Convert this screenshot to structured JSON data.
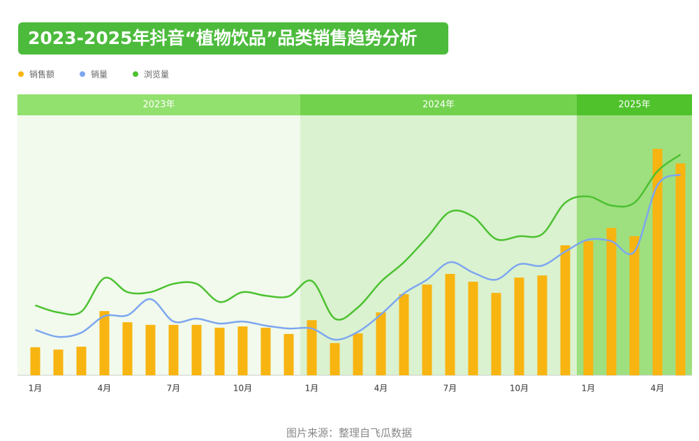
{
  "chart_data": {
    "type": "bar_line",
    "title": "2023-2025年抖音“植物饮品”品类销售趋势分析",
    "source": "图片来源：整理自飞瓜数据",
    "categories": [
      "1月",
      null,
      null,
      "4月",
      null,
      null,
      "7月",
      null,
      null,
      "10月",
      null,
      null,
      "1月",
      null,
      null,
      "4月",
      null,
      null,
      "7月",
      null,
      null,
      "10月",
      null,
      null,
      "1月",
      null,
      null,
      "4月",
      null
    ],
    "year_bands": [
      {
        "label": "2023年",
        "months": 12,
        "header_color": "#92e06e",
        "color": "#f1faec"
      },
      {
        "label": "2024年",
        "months": 12,
        "header_color": "#72d24e",
        "color": "#daf2cf"
      },
      {
        "label": "2025年",
        "months": 5,
        "header_color": "#4fc22c",
        "color": "#9edf80"
      }
    ],
    "ylim": [
      0,
      100
    ],
    "series": [
      {
        "name": "销售额",
        "kind": "bar",
        "color": "#f8b410",
        "values": [
          10.8,
          9.9,
          11.0,
          24.7,
          20.4,
          19.4,
          19.4,
          19.4,
          18.3,
          18.8,
          18.3,
          15.9,
          21.2,
          12.4,
          16.1,
          24.2,
          31.2,
          34.9,
          39.0,
          36.0,
          31.7,
          37.6,
          38.4,
          50.0,
          51.6,
          56.7,
          53.5,
          87.1,
          81.5
        ]
      },
      {
        "name": "销量",
        "kind": "line",
        "color": "#7da6f0",
        "values": [
          17.5,
          14.8,
          16.4,
          22.8,
          23.1,
          29.3,
          20.7,
          21.8,
          19.9,
          20.7,
          19.1,
          18.0,
          18.0,
          13.7,
          16.7,
          23.4,
          31.5,
          36.8,
          43.5,
          39.5,
          36.8,
          42.7,
          42.2,
          47.6,
          52.2,
          51.6,
          47.6,
          73.1,
          77.2
        ]
      },
      {
        "name": "浏览量",
        "kind": "line",
        "color": "#4cc131",
        "values": [
          26.9,
          24.2,
          24.5,
          37.4,
          32.0,
          32.0,
          35.2,
          35.2,
          28.2,
          32.0,
          30.6,
          30.4,
          36.3,
          21.8,
          26.1,
          36.0,
          43.5,
          53.0,
          62.9,
          61.0,
          52.4,
          53.5,
          54.3,
          66.4,
          68.8,
          65.3,
          66.4,
          78.5,
          84.9
        ]
      }
    ]
  }
}
